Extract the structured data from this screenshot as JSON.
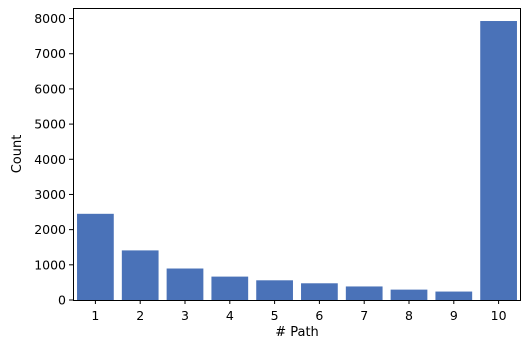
{
  "chart_data": {
    "type": "bar",
    "categories": [
      "1",
      "2",
      "3",
      "4",
      "5",
      "6",
      "7",
      "8",
      "9",
      "10"
    ],
    "values": [
      2450,
      1410,
      895,
      665,
      560,
      475,
      385,
      295,
      240,
      7930
    ],
    "xlabel": "# Path",
    "ylabel": "Count",
    "ylim": [
      0,
      8300
    ],
    "yticks": [
      0,
      1000,
      2000,
      3000,
      4000,
      5000,
      6000,
      7000,
      8000
    ],
    "ytick_labels": [
      "0",
      "1000",
      "2000",
      "3000",
      "4000",
      "5000",
      "6000",
      "7000",
      "8000"
    ],
    "grid": false,
    "colors": {
      "bar": "#4a72b8",
      "axis": "#000000"
    }
  }
}
